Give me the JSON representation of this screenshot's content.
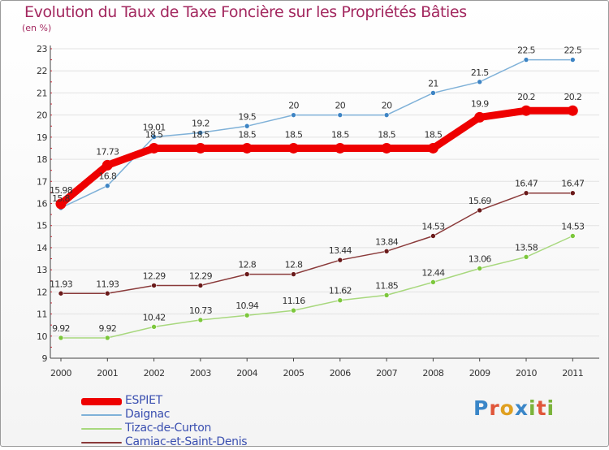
{
  "title": "Evolution du Taux de Taxe Foncière sur les Propriétés Bâties",
  "unit_label": "(en %)",
  "logo": {
    "text": "Proxiti",
    "colors": [
      "#3a86c8",
      "#e0563a",
      "#e0a020",
      "#3a86c8",
      "#7bb33a",
      "#e0563a",
      "#7bb33a"
    ]
  },
  "chart_data": {
    "type": "line",
    "title": "Evolution du Taux de Taxe Foncière sur les Propriétés Bâties",
    "xlabel": "",
    "ylabel": "(en %)",
    "categories": [
      "2000",
      "2001",
      "2002",
      "2003",
      "2004",
      "2005",
      "2006",
      "2007",
      "2008",
      "2009",
      "2010",
      "2011"
    ],
    "y_ticks": [
      "9",
      "10",
      "11",
      "12",
      "13",
      "14",
      "15",
      "16",
      "17",
      "18",
      "19",
      "20",
      "21",
      "22",
      "23"
    ],
    "ylim": [
      9,
      23
    ],
    "grid": true,
    "legend_position": "bottom-left",
    "series": [
      {
        "name": "ESPIET",
        "color": "#ee0000",
        "emphasis": true,
        "values": [
          15.98,
          17.73,
          18.5,
          18.5,
          18.5,
          18.5,
          18.5,
          18.5,
          18.5,
          19.9,
          20.2,
          20.2
        ],
        "labels": [
          "15.98",
          "17.73",
          "18.5",
          "18.5",
          "18.5",
          "18.5",
          "18.5",
          "18.5",
          "18.5",
          "19.9",
          "20.2",
          "20.2"
        ]
      },
      {
        "name": "Daignac",
        "color": "#7fb1d8",
        "marker": "#3d84c4",
        "values": [
          15.8,
          16.8,
          19.01,
          19.2,
          19.5,
          20,
          20,
          20,
          21,
          21.5,
          22.5,
          22.5
        ],
        "labels": [
          "15.8",
          "16.8",
          "19.01",
          "19.2",
          "19.5",
          "20",
          "20",
          "20",
          "21",
          "21.5",
          "22.5",
          "22.5"
        ]
      },
      {
        "name": "Tizac-de-Curton",
        "color": "#a8d87e",
        "marker": "#7cc73c",
        "values": [
          9.92,
          9.92,
          10.42,
          10.73,
          10.94,
          11.16,
          11.62,
          11.85,
          12.44,
          13.06,
          13.58,
          14.53
        ],
        "labels": [
          "9.92",
          "9.92",
          "10.42",
          "10.73",
          "10.94",
          "11.16",
          "11.62",
          "11.85",
          "12.44",
          "13.06",
          "13.58",
          "14.53"
        ]
      },
      {
        "name": "Camiac-et-Saint-Denis",
        "color": "#8a3a3a",
        "marker": "#6a1a1a",
        "values": [
          11.93,
          11.93,
          12.29,
          12.29,
          12.8,
          12.8,
          13.44,
          13.84,
          14.53,
          15.69,
          16.47,
          16.47
        ],
        "labels": [
          "11.93",
          "11.93",
          "12.29",
          "12.29",
          "12.8",
          "12.8",
          "13.44",
          "13.84",
          "14.53",
          "15.69",
          "16.47",
          "16.47"
        ]
      }
    ]
  }
}
